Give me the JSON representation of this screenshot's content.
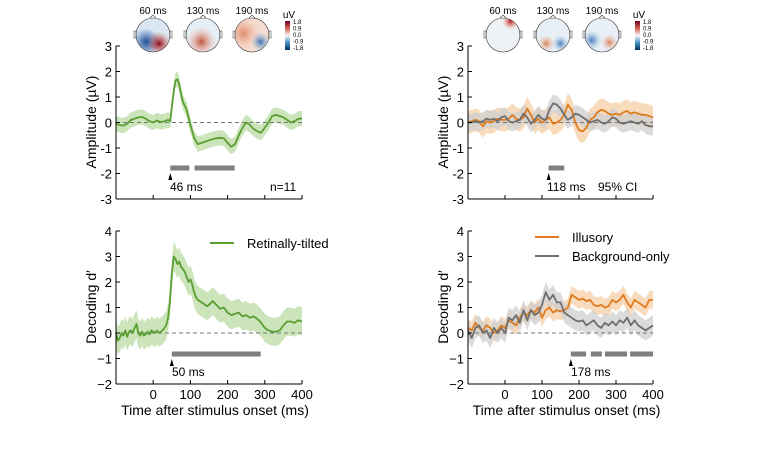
{
  "colors": {
    "green": "#5a9e32",
    "green_fill": "#b9dba1",
    "orange": "#e07b1e",
    "orange_fill": "#f6cfa6",
    "gray": "#6e6e6e",
    "gray_fill": "#cfcfcf",
    "sig_bar": "#7f7f7f"
  },
  "topomaps": {
    "colorbar": {
      "unit": "uV",
      "ticks": [
        "1.8",
        "0.9",
        "0.0",
        "-0.9",
        "-1.8"
      ],
      "range": [
        -1.8,
        1.8
      ]
    },
    "left": [
      {
        "label": "60 ms"
      },
      {
        "label": "130 ms"
      },
      {
        "label": "190 ms"
      }
    ],
    "right": [
      {
        "label": "60 ms"
      },
      {
        "label": "130 ms"
      },
      {
        "label": "190 ms"
      }
    ]
  },
  "chart_data": [
    {
      "id": "amp-left",
      "type": "line",
      "title": "",
      "xlabel": "",
      "ylabel": "Amplitude (µV)",
      "xlim": [
        -100,
        400
      ],
      "ylim": [
        -3,
        3
      ],
      "yticks": [
        "3",
        "2",
        "1",
        "0",
        "-1",
        "-2",
        "-3"
      ],
      "xticks": [],
      "annotation_onset": "46 ms",
      "annotation_corner": "n=11",
      "sig_bars": [
        [
          46,
          97
        ],
        [
          111,
          219
        ]
      ],
      "onset": 46,
      "series": [
        {
          "name": "Retinally-tilted",
          "color": "green",
          "x": [
            -100,
            -90,
            -80,
            -70,
            -60,
            -50,
            -40,
            -30,
            -20,
            -10,
            0,
            10,
            20,
            30,
            40,
            46,
            50,
            55,
            60,
            65,
            70,
            75,
            80,
            85,
            90,
            95,
            100,
            110,
            120,
            130,
            140,
            150,
            160,
            170,
            180,
            190,
            200,
            210,
            220,
            230,
            240,
            250,
            260,
            270,
            280,
            290,
            300,
            310,
            320,
            330,
            340,
            350,
            360,
            370,
            380,
            390,
            400
          ],
          "y": [
            -0.05,
            -0.1,
            -0.12,
            -0.05,
            0.1,
            0.15,
            0.2,
            0.22,
            0.15,
            0.05,
            0.0,
            0.08,
            0.02,
            0.05,
            0.1,
            0.05,
            0.6,
            1.2,
            1.65,
            1.7,
            1.5,
            1.1,
            0.8,
            0.65,
            0.5,
            0.2,
            -0.1,
            -0.6,
            -0.85,
            -0.8,
            -0.75,
            -0.7,
            -0.65,
            -0.62,
            -0.6,
            -0.62,
            -0.8,
            -0.95,
            -0.85,
            -0.5,
            -0.2,
            0.0,
            -0.1,
            -0.25,
            -0.35,
            -0.4,
            -0.2,
            0.0,
            0.25,
            0.3,
            0.25,
            0.2,
            0.1,
            0.0,
            0.05,
            0.15,
            0.15
          ],
          "ci": 0.3
        }
      ]
    },
    {
      "id": "amp-right",
      "type": "line",
      "ylabel": "Amplitude (µV)",
      "xlim": [
        -100,
        400
      ],
      "ylim": [
        -3,
        3
      ],
      "yticks": [
        "3",
        "2",
        "1",
        "0",
        "-1",
        "-2",
        "-3"
      ],
      "annotation_onset": "118 ms",
      "annotation_corner": "95% CI",
      "sig_bars": [
        [
          118,
          160
        ]
      ],
      "onset": 118,
      "series": [
        {
          "name": "Illusory",
          "color": "orange",
          "x": [
            -100,
            -90,
            -80,
            -70,
            -60,
            -50,
            -40,
            -30,
            -20,
            -10,
            0,
            10,
            20,
            30,
            40,
            50,
            60,
            70,
            80,
            90,
            100,
            110,
            120,
            130,
            140,
            150,
            160,
            170,
            180,
            190,
            200,
            210,
            220,
            230,
            240,
            250,
            260,
            270,
            280,
            290,
            300,
            310,
            320,
            330,
            340,
            350,
            360,
            370,
            380,
            390,
            400
          ],
          "y": [
            0.0,
            0.05,
            0.1,
            0.05,
            -0.15,
            0.05,
            0.0,
            0.05,
            0.15,
            0.1,
            0.1,
            0.15,
            0.3,
            0.15,
            0.1,
            0.2,
            0.55,
            0.3,
            0.0,
            0.15,
            0.0,
            0.1,
            0.2,
            -0.05,
            0.0,
            0.1,
            0.3,
            0.7,
            0.5,
            0.0,
            -0.3,
            -0.35,
            -0.2,
            0.1,
            0.2,
            0.4,
            0.5,
            0.45,
            0.35,
            0.3,
            0.35,
            0.3,
            0.4,
            0.45,
            0.35,
            0.4,
            0.35,
            0.3,
            0.3,
            0.25,
            0.2
          ],
          "ci": 0.45
        },
        {
          "name": "Background-only",
          "color": "gray",
          "x": [
            -100,
            -90,
            -80,
            -70,
            -60,
            -50,
            -40,
            -30,
            -20,
            -10,
            0,
            10,
            20,
            30,
            40,
            50,
            60,
            70,
            80,
            90,
            100,
            110,
            120,
            130,
            140,
            150,
            160,
            170,
            180,
            190,
            200,
            210,
            220,
            230,
            240,
            250,
            260,
            270,
            280,
            290,
            300,
            310,
            320,
            330,
            340,
            350,
            360,
            370,
            380,
            390,
            400
          ],
          "y": [
            0.0,
            0.0,
            0.05,
            0.0,
            0.05,
            0.15,
            0.1,
            0.15,
            0.05,
            0.2,
            0.25,
            0.05,
            0.0,
            0.05,
            0.1,
            0.35,
            0.2,
            -0.05,
            0.1,
            0.3,
            0.15,
            0.1,
            0.5,
            0.75,
            0.7,
            0.55,
            0.3,
            0.1,
            0.2,
            0.35,
            0.3,
            0.2,
            0.1,
            0.0,
            0.05,
            0.1,
            0.0,
            -0.05,
            0.05,
            0.2,
            0.15,
            0.0,
            -0.05,
            0.0,
            0.05,
            0.0,
            -0.05,
            0.05,
            -0.1,
            -0.15,
            -0.15
          ],
          "ci": 0.35
        }
      ]
    },
    {
      "id": "dec-left",
      "type": "line",
      "ylabel": "Decoding d′",
      "xlabel": "Time after stimulus onset (ms)",
      "xlim": [
        -100,
        400
      ],
      "ylim": [
        -2,
        4
      ],
      "yticks": [
        "4",
        "3",
        "2",
        "1",
        "0",
        "−1",
        "−2"
      ],
      "xticks": [
        "0",
        "100",
        "200",
        "300",
        "400"
      ],
      "xtick_values": [
        0,
        100,
        200,
        300,
        400
      ],
      "annotation_onset": "50 ms",
      "sig_bars": [
        [
          50,
          289
        ]
      ],
      "onset": 50,
      "legend": {
        "position": "top-right",
        "entries": [
          "Retinally-tilted"
        ]
      },
      "series": [
        {
          "name": "Retinally-tilted",
          "color": "green",
          "x": [
            -100,
            -95,
            -90,
            -85,
            -80,
            -75,
            -70,
            -65,
            -60,
            -55,
            -50,
            -45,
            -40,
            -35,
            -30,
            -25,
            -20,
            -15,
            -10,
            -5,
            0,
            5,
            10,
            15,
            20,
            25,
            30,
            35,
            40,
            45,
            50,
            55,
            60,
            65,
            70,
            75,
            80,
            85,
            90,
            95,
            100,
            105,
            110,
            115,
            120,
            125,
            130,
            135,
            140,
            145,
            150,
            160,
            170,
            180,
            190,
            200,
            210,
            220,
            230,
            240,
            250,
            260,
            270,
            280,
            290,
            300,
            310,
            320,
            330,
            340,
            350,
            360,
            370,
            380,
            390,
            400
          ],
          "y": [
            0.0,
            -0.3,
            -0.2,
            0.0,
            -0.1,
            0.1,
            -0.15,
            0.05,
            0.1,
            0.0,
            0.2,
            0.35,
            0.0,
            -0.1,
            0.05,
            -0.1,
            -0.05,
            0.05,
            -0.05,
            0.1,
            0.05,
            0.0,
            0.1,
            0.0,
            0.05,
            0.1,
            0.2,
            0.3,
            0.6,
            1.2,
            2.3,
            3.0,
            2.9,
            2.7,
            2.8,
            2.6,
            2.5,
            2.4,
            2.2,
            2.0,
            2.1,
            1.9,
            1.6,
            1.4,
            1.3,
            1.25,
            1.2,
            1.15,
            1.1,
            1.05,
            1.1,
            1.25,
            1.1,
            0.95,
            1.0,
            0.8,
            0.7,
            0.75,
            0.8,
            0.65,
            0.7,
            0.6,
            0.65,
            0.55,
            0.4,
            0.2,
            0.1,
            0.05,
            0.05,
            0.1,
            0.3,
            0.45,
            0.45,
            0.4,
            0.5,
            0.45
          ],
          "ci": 0.55
        }
      ]
    },
    {
      "id": "dec-right",
      "type": "line",
      "ylabel": "Decoding d′",
      "xlabel": "Time after stimulus onset (ms)",
      "xlim": [
        -100,
        400
      ],
      "ylim": [
        -2,
        4
      ],
      "yticks": [
        "4",
        "3",
        "2",
        "1",
        "0",
        "−1",
        "−2"
      ],
      "xticks": [
        "0",
        "100",
        "200",
        "300",
        "400"
      ],
      "xtick_values": [
        0,
        100,
        200,
        300,
        400
      ],
      "annotation_onset": "178 ms",
      "sig_bars": [
        [
          178,
          219
        ],
        [
          232,
          262
        ],
        [
          270,
          330
        ],
        [
          338,
          400
        ]
      ],
      "onset": 178,
      "legend": {
        "position": "top-right",
        "entries": [
          "Illusory",
          "Background-only"
        ]
      },
      "series": [
        {
          "name": "Illusory",
          "color": "orange",
          "x": [
            -100,
            -90,
            -80,
            -70,
            -60,
            -50,
            -40,
            -30,
            -20,
            -10,
            0,
            10,
            20,
            30,
            40,
            50,
            60,
            70,
            80,
            90,
            100,
            110,
            120,
            130,
            140,
            150,
            160,
            170,
            180,
            190,
            200,
            210,
            220,
            230,
            240,
            250,
            260,
            270,
            280,
            290,
            300,
            310,
            320,
            330,
            340,
            350,
            360,
            370,
            380,
            390,
            400
          ],
          "y": [
            0.2,
            0.1,
            0.4,
            0.2,
            0.1,
            0.3,
            0.2,
            0.0,
            0.1,
            0.3,
            0.2,
            0.5,
            0.4,
            0.3,
            0.6,
            0.8,
            0.7,
            0.9,
            0.8,
            1.0,
            0.6,
            0.9,
            1.0,
            0.8,
            0.9,
            0.85,
            0.9,
            1.0,
            1.5,
            1.4,
            1.3,
            1.35,
            1.25,
            1.3,
            1.1,
            1.05,
            1.1,
            1.0,
            1.05,
            1.3,
            1.2,
            1.3,
            1.5,
            1.2,
            1.0,
            1.3,
            1.2,
            1.1,
            1.0,
            1.3,
            1.3
          ],
          "ci": 0.35
        },
        {
          "name": "Background-only",
          "color": "gray",
          "x": [
            -100,
            -90,
            -80,
            -70,
            -60,
            -50,
            -40,
            -30,
            -20,
            -10,
            0,
            10,
            20,
            30,
            40,
            50,
            60,
            70,
            80,
            90,
            100,
            110,
            120,
            130,
            140,
            150,
            160,
            170,
            180,
            190,
            200,
            210,
            220,
            230,
            240,
            250,
            260,
            270,
            280,
            290,
            300,
            310,
            320,
            330,
            340,
            350,
            360,
            370,
            380,
            390,
            400
          ],
          "y": [
            0.1,
            -0.2,
            0.2,
            0.3,
            0.0,
            0.1,
            -0.2,
            0.2,
            0.0,
            0.2,
            0.0,
            0.6,
            0.5,
            0.7,
            0.4,
            0.9,
            0.5,
            0.9,
            0.7,
            0.8,
            1.1,
            1.6,
            1.3,
            1.5,
            1.2,
            1.2,
            0.8,
            0.7,
            0.6,
            0.5,
            0.45,
            0.5,
            0.3,
            0.4,
            0.5,
            0.3,
            0.2,
            0.4,
            0.3,
            0.45,
            0.3,
            0.5,
            0.4,
            0.6,
            0.3,
            0.5,
            0.3,
            0.2,
            0.1,
            0.2,
            0.3
          ],
          "ci": 0.4
        }
      ]
    }
  ]
}
